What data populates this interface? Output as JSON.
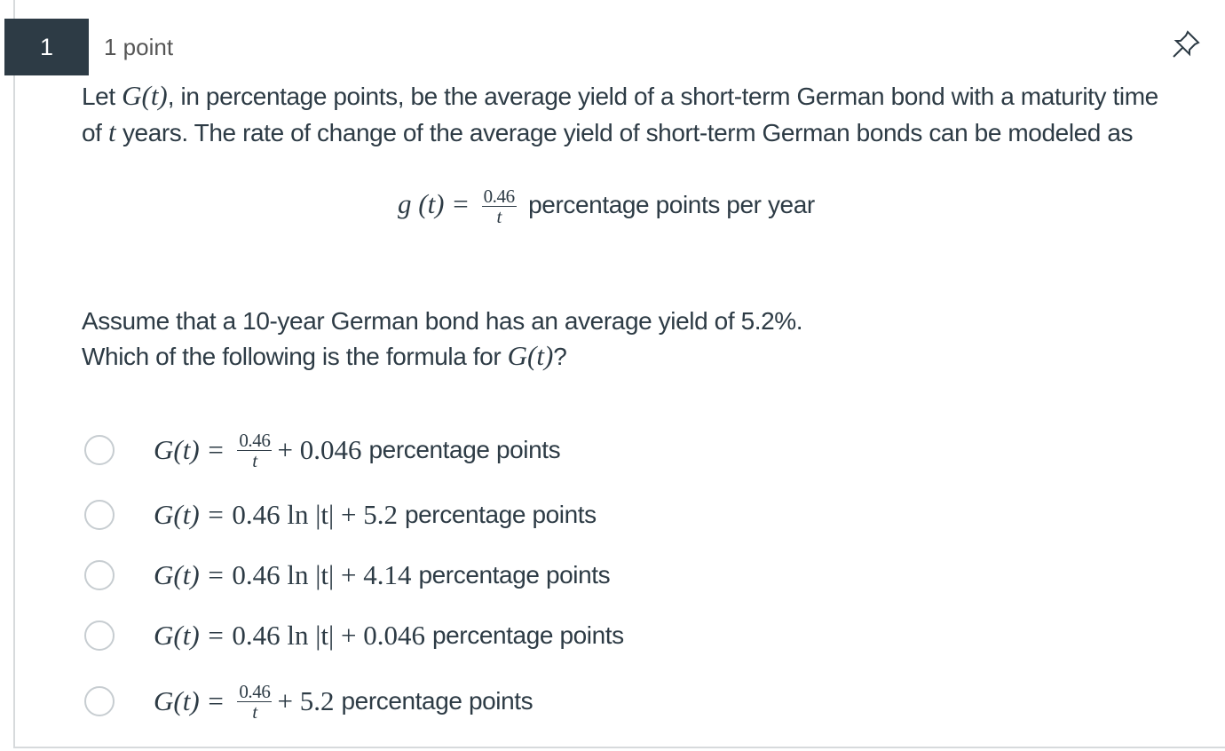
{
  "question": {
    "number": "1",
    "points": "1 point",
    "intro": [
      "Let ",
      "G(t)",
      ", in percentage points, be the average yield of a short-term German bond with a maturity time of ",
      "t",
      " years. The rate of change of the average yield of short-term German bonds can be modeled as"
    ],
    "rate": {
      "lhs": "g (t) =",
      "numerator": "0.46",
      "denominator": "t",
      "unit": "percentage points per year"
    },
    "assumption": "Assume that a 10-year German bond has an average yield of 5.2%.",
    "ask": [
      "Which of the following is the formula for ",
      "G(t)",
      "?"
    ]
  },
  "options": [
    {
      "lhs": "G(t) =",
      "numerator": "0.46",
      "denominator": "t",
      "expression": "+ 0.046",
      "unit": "percentage points"
    },
    {
      "lhs": "G(t) =",
      "expression": "0.46 ln |t| + 5.2",
      "unit": "percentage points"
    },
    {
      "lhs": "G(t) =",
      "expression": "0.46 ln |t| + 4.14",
      "unit": "percentage points"
    },
    {
      "lhs": "G(t) =",
      "expression": "0.46 ln |t| + 0.046",
      "unit": "percentage points"
    },
    {
      "lhs": "G(t) =",
      "numerator": "0.46",
      "denominator": "t",
      "expression": "+ 5.2",
      "unit": "percentage points"
    }
  ]
}
